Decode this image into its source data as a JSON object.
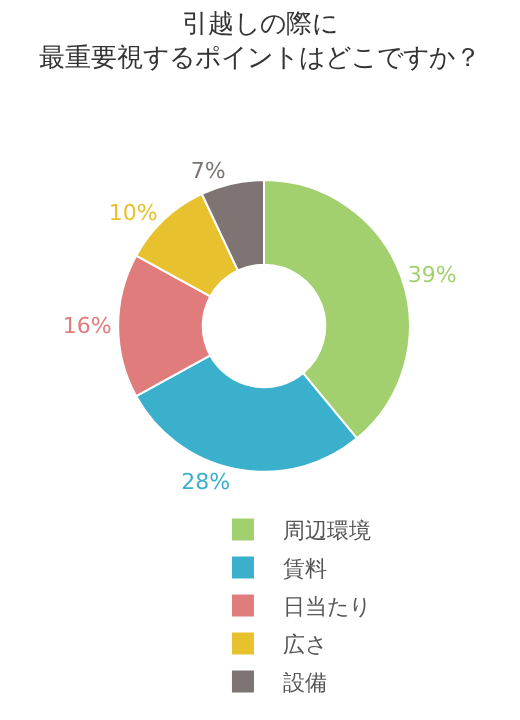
{
  "chart_data": {
    "type": "donut",
    "title": "引越しの際に",
    "subtitle": "最重要視するポイントはどこですか？",
    "categories": [
      "周辺環境",
      "賃料",
      "日当たり",
      "広さ",
      "設備"
    ],
    "values": [
      39,
      28,
      16,
      10,
      7
    ],
    "value_labels": [
      "39%",
      "28%",
      "16%",
      "10%",
      "7%"
    ],
    "colors": [
      "#a3d06f",
      "#3bb0cc",
      "#e07c7c",
      "#e8c22e",
      "#7e7474"
    ],
    "legend": "bottom"
  }
}
